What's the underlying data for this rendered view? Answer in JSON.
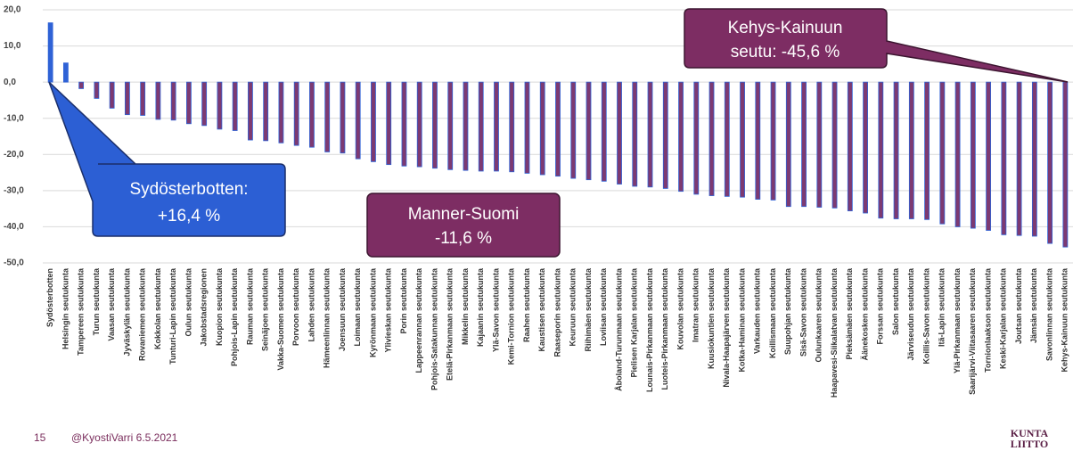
{
  "chart_data": {
    "type": "bar",
    "categories": [
      "Sydösterbotten",
      "Helsingin seutukunta",
      "Tampereen seutukunta",
      "Turun seutukunta",
      "Vaasan seutukunta",
      "Jyväskylän seutukunta",
      "Rovaniemen seutukunta",
      "Kokkolan seutukunta",
      "Tunturi-Lapin seutukunta",
      "Oulun seutukunta",
      "Jakobstadsregionen",
      "Kuopion seutukunta",
      "Pohjois-Lapin seutukunta",
      "Rauman seutukunta",
      "Seinäjoen seutukunta",
      "Vakka-Suomen seutukunta",
      "Porvoon seutukunta",
      "Lahden seutukunta",
      "Hämeenlinnan seutukunta",
      "Joensuun seutukunta",
      "Loimaan seutukunta",
      "Kyrönmaan seutukunta",
      "Ylivieskan seutukunta",
      "Porin seutukunta",
      "Lappeenrannan seutukunta",
      "Pohjois-Satakunnan seutukunta",
      "Etelä-Pirkanmaan seutukunta",
      "Mikkelin seutukunta",
      "Kajaanin seutukunta",
      "Ylä-Savon seutukunta",
      "Kemi-Tornion seutukunta",
      "Raahen seutukunta",
      "Kaustisen seutukunta",
      "Raaseporin seutukunta",
      "Keuruun seutukunta",
      "Riihimäen seutukunta",
      "Loviisan seutukunta",
      "Åboland-Turunmaan seutukunta",
      "Pielisen Karjalan seutukunta",
      "Lounais-Pirkanmaan seutukunta",
      "Luoteis-Pirkanmaan seutukunta",
      "Kouvolan seutukunta",
      "Imatran seutukunta",
      "Kuusiokuntien seutukunta",
      "Nivala-Haapajärven seutukunta",
      "Kotka-Haminan seutukunta",
      "Varkauden seutukunta",
      "Koillismaan seutukunta",
      "Suupohjan seutukunta",
      "Sisä-Savon seutukunta",
      "Oulunkaaren seutukunta",
      "Haapavesi-Siikalatvan seutukunta",
      "Pieksämäen seutukunta",
      "Äänekosken seutukunta",
      "Forssan seutukunta",
      "Salon seutukunta",
      "Järviseudun seutukunta",
      "Koillis-Savon seutukunta",
      "Itä-Lapin seutukunta",
      "Ylä-Pirkanmaan seutukunta",
      "Saarijärvi-Viitasaaren seutukunta",
      "Tornionlaakson seutukunta",
      "Keski-Karjalan seutukunta",
      "Joutsan seutukunta",
      "Jämsän seutukunta",
      "Savonlinnan seutukunta",
      "Kehys-Kainuun seutukunta"
    ],
    "values": [
      16.4,
      5.3,
      -1.8,
      -4.5,
      -7.2,
      -9.0,
      -9.2,
      -10.3,
      -10.5,
      -11.5,
      -12.0,
      -13.0,
      -13.4,
      -16.0,
      -16.2,
      -16.8,
      -17.5,
      -18.0,
      -19.3,
      -19.6,
      -21.2,
      -22.0,
      -22.8,
      -23.2,
      -23.4,
      -23.8,
      -24.2,
      -24.4,
      -24.6,
      -24.6,
      -24.8,
      -25.2,
      -25.6,
      -26.0,
      -26.6,
      -27.0,
      -27.4,
      -28.2,
      -28.8,
      -29.0,
      -29.4,
      -30.2,
      -31.0,
      -31.4,
      -31.6,
      -31.8,
      -32.4,
      -32.6,
      -34.4,
      -34.4,
      -34.6,
      -34.8,
      -35.6,
      -36.2,
      -37.6,
      -37.8,
      -37.8,
      -38.0,
      -39.2,
      -40.0,
      -40.4,
      -41.0,
      -42.2,
      -42.4,
      -42.6,
      -44.6,
      -45.6
    ],
    "positive_color": "#2f62d6",
    "negative_color": "#7d3a72",
    "ylim": [
      -50,
      20
    ],
    "yticks": [
      {
        "value": -50,
        "label": "-50,0"
      },
      {
        "value": -40,
        "label": "-40,0"
      },
      {
        "value": -30,
        "label": "-30,0"
      },
      {
        "value": -20,
        "label": "-20,0"
      },
      {
        "value": -10,
        "label": "-10,0"
      },
      {
        "value": 0,
        "label": "0,0"
      },
      {
        "value": 10,
        "label": "10,0"
      },
      {
        "value": 20,
        "label": "20,0"
      }
    ],
    "grid": true,
    "annotations": [
      [
        "Sydösterbotten:",
        "+16,4 %"
      ],
      [
        "Manner-Suomi",
        "-11,6 %"
      ],
      [
        "Kehys-Kainuun",
        "seutu: -45,6 %"
      ]
    ]
  },
  "footer": {
    "page": "15",
    "author": "@KyostiVarri 6.5.2021",
    "logo": [
      "KUNTA",
      "LIITTO"
    ]
  }
}
